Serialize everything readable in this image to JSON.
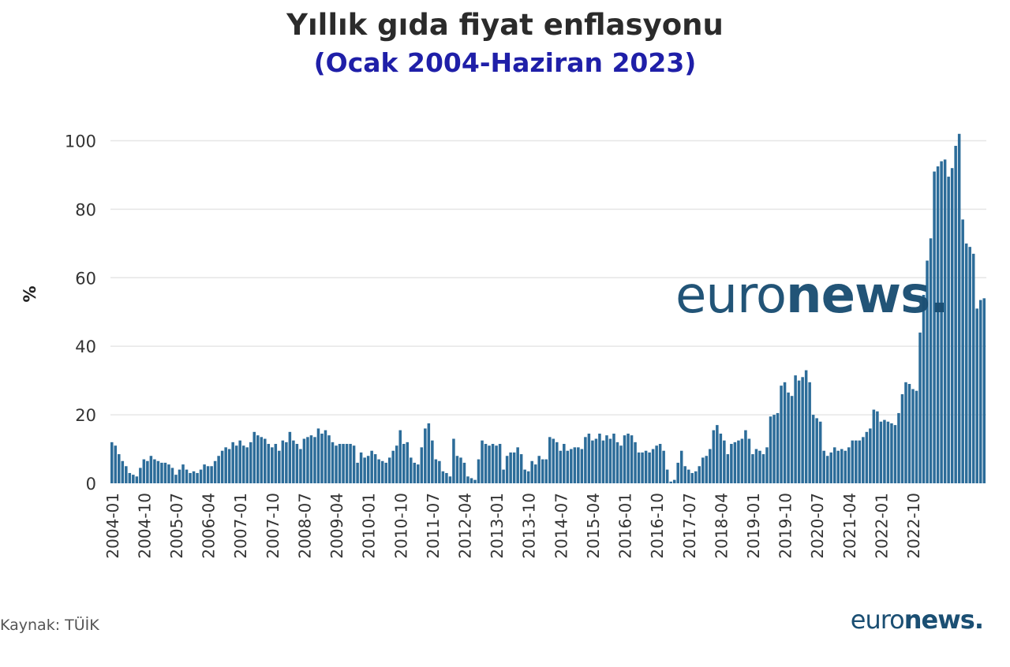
{
  "title": "Yıllık gıda fiyat enflasyonu",
  "subtitle": "(Ocak 2004-Haziran 2023)",
  "source": "Kaynak: TÜİK",
  "logo": {
    "light": "euro",
    "bold": "news",
    "dot": "."
  },
  "colors": {
    "bar": "#2c6c99",
    "title": "#2b2b2b",
    "subtitle": "#1f1fa8",
    "grid": "#e6e6e6"
  },
  "chart_data": {
    "type": "bar",
    "title": "Yıllık gıda fiyat enflasyonu",
    "subtitle": "(Ocak 2004-Haziran 2023)",
    "ylabel": "%",
    "xlabel": "",
    "ylim": [
      0,
      110
    ],
    "yticks": [
      0,
      20,
      40,
      60,
      80,
      100
    ],
    "grid": true,
    "x_start": "2004-01",
    "x_tick_labels": [
      "2004-01",
      "2004-10",
      "2005-07",
      "2006-04",
      "2007-01",
      "2007-10",
      "2008-07",
      "2009-04",
      "2010-01",
      "2010-10",
      "2011-07",
      "2012-04",
      "2013-01",
      "2013-10",
      "2014-07",
      "2015-04",
      "2016-01",
      "2016-10",
      "2017-07",
      "2018-04",
      "2019-01",
      "2019-10",
      "2020-07",
      "2021-04",
      "2022-01",
      "2022-10"
    ],
    "values": [
      12.0,
      11.0,
      8.5,
      6.5,
      5.0,
      3.0,
      2.5,
      2.0,
      4.5,
      7.0,
      6.5,
      8.0,
      7.0,
      6.5,
      6.0,
      6.0,
      5.5,
      4.5,
      2.5,
      4.0,
      5.5,
      4.0,
      3.0,
      3.5,
      3.0,
      4.0,
      5.5,
      5.0,
      5.0,
      6.5,
      8.0,
      9.5,
      10.5,
      10.0,
      12.0,
      11.0,
      12.5,
      11.0,
      10.5,
      12.0,
      15.0,
      14.0,
      13.5,
      13.0,
      11.5,
      10.5,
      11.5,
      9.5,
      12.5,
      12.0,
      15.0,
      12.5,
      11.5,
      10.0,
      13.0,
      13.5,
      14.0,
      13.5,
      16.0,
      14.5,
      15.5,
      14.0,
      12.0,
      11.0,
      11.5,
      11.5,
      11.5,
      11.5,
      11.0,
      6.0,
      9.0,
      7.5,
      8.0,
      9.5,
      8.5,
      7.0,
      6.5,
      6.0,
      7.5,
      9.5,
      11.0,
      15.5,
      11.5,
      12.0,
      7.5,
      6.0,
      5.5,
      10.5,
      16.0,
      17.5,
      12.5,
      7.0,
      6.5,
      3.5,
      3.0,
      2.0,
      13.0,
      8.0,
      7.5,
      6.0,
      2.0,
      1.5,
      1.0,
      7.0,
      12.5,
      11.5,
      11.0,
      11.5,
      11.0,
      11.5,
      4.0,
      8.0,
      9.0,
      9.0,
      10.5,
      8.5,
      4.0,
      3.5,
      6.5,
      5.5,
      8.0,
      7.0,
      7.0,
      13.5,
      13.0,
      12.0,
      9.5,
      11.5,
      9.5,
      10.0,
      10.5,
      10.5,
      10.0,
      13.5,
      14.5,
      12.5,
      13.0,
      14.5,
      12.5,
      14.0,
      13.0,
      14.5,
      12.0,
      11.0,
      14.0,
      14.5,
      14.0,
      12.0,
      9.0,
      9.0,
      9.5,
      9.0,
      10.0,
      11.0,
      11.5,
      9.5,
      4.0,
      0.5,
      1.0,
      6.0,
      9.5,
      5.0,
      4.0,
      3.0,
      3.5,
      5.0,
      7.5,
      8.0,
      10.0,
      15.5,
      17.0,
      14.5,
      12.5,
      8.5,
      11.5,
      12.0,
      12.5,
      13.0,
      15.5,
      13.0,
      8.5,
      10.0,
      9.5,
      8.5,
      10.5,
      19.5,
      20.0,
      20.5,
      28.5,
      29.5,
      26.5,
      25.5,
      31.5,
      30.0,
      31.0,
      33.0,
      29.5,
      20.0,
      19.0,
      18.0,
      9.5,
      8.0,
      9.0,
      10.5,
      9.5,
      10.0,
      9.5,
      10.5,
      12.5,
      12.5,
      12.5,
      13.5,
      15.0,
      16.0,
      21.5,
      21.0,
      18.0,
      18.5,
      18.0,
      17.5,
      17.0,
      20.5,
      26.0,
      29.5,
      29.0,
      27.5,
      27.0,
      44.0,
      55.0,
      65.0,
      71.5,
      91.0,
      92.5,
      94.0,
      94.5,
      89.5,
      92.0,
      98.5,
      102.0,
      77.0,
      70.0,
      69.0,
      67.0,
      51.0,
      53.5,
      54.0
    ]
  }
}
